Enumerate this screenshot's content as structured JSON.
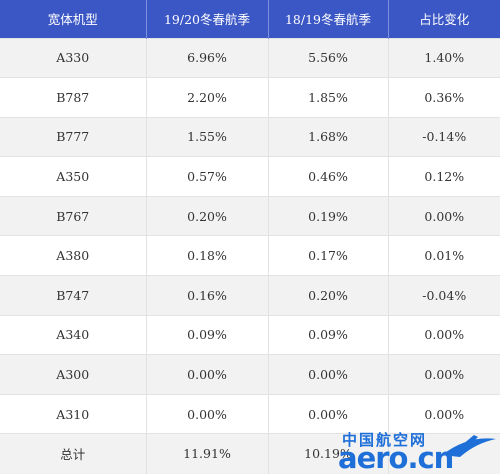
{
  "table": {
    "headers": [
      "宽体机型",
      "19/20冬春航季",
      "18/19冬春航季",
      "占比变化"
    ],
    "rows": [
      [
        "A330",
        "6.96%",
        "5.56%",
        "1.40%"
      ],
      [
        "B787",
        "2.20%",
        "1.85%",
        "0.36%"
      ],
      [
        "B777",
        "1.55%",
        "1.68%",
        "-0.14%"
      ],
      [
        "A350",
        "0.57%",
        "0.46%",
        "0.12%"
      ],
      [
        "B767",
        "0.20%",
        "0.19%",
        "0.00%"
      ],
      [
        "A380",
        "0.18%",
        "0.17%",
        "0.01%"
      ],
      [
        "B747",
        "0.16%",
        "0.20%",
        "-0.04%"
      ],
      [
        "A340",
        "0.09%",
        "0.09%",
        "0.00%"
      ],
      [
        "A300",
        "0.00%",
        "0.00%",
        "0.00%"
      ],
      [
        "A310",
        "0.00%",
        "0.00%",
        "0.00%"
      ],
      [
        "总计",
        "11.91%",
        "10.19%",
        ""
      ]
    ]
  },
  "watermark": {
    "cn": "中国航空网",
    "en": "aero.cn",
    "color": "#1e6fd8"
  },
  "colors": {
    "header_bg": "#3b56c5",
    "row_alt_bg": "#f2f2f2"
  }
}
